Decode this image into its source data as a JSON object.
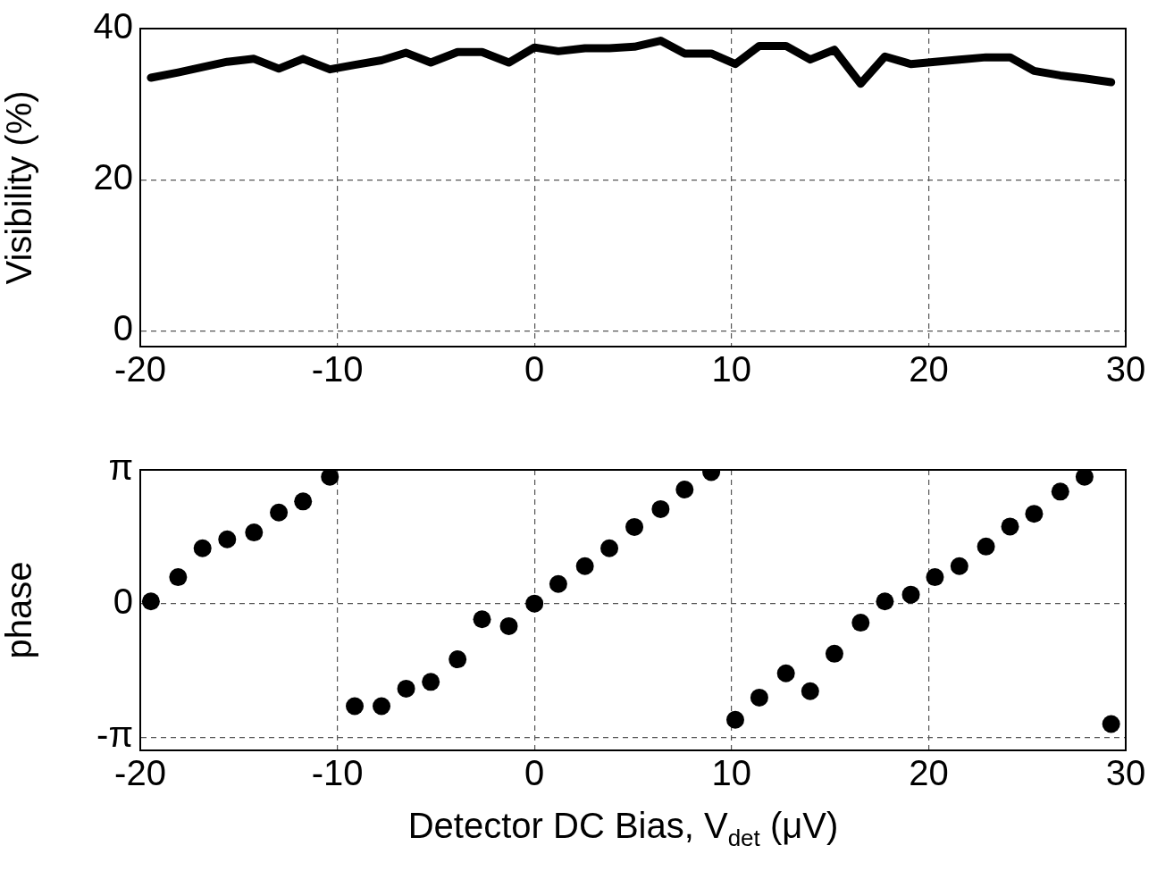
{
  "chart_data": [
    {
      "type": "line",
      "ylabel": "Visibility (%)",
      "xlim": [
        -20,
        30
      ],
      "xticks": [
        -20,
        -10,
        0,
        10,
        20,
        30
      ],
      "ylim": [
        -2.1,
        40
      ],
      "yticks": [
        0,
        20,
        40
      ],
      "grid": true,
      "line_style": "solid",
      "marker": "none",
      "x": [
        -19.46,
        -18.08,
        -16.84,
        -15.59,
        -14.23,
        -12.97,
        -11.74,
        -10.38,
        -9.12,
        -7.76,
        -6.51,
        -5.26,
        -3.9,
        -2.66,
        -1.3,
        0,
        1.21,
        2.56,
        3.8,
        5.07,
        6.4,
        7.62,
        8.97,
        10.19,
        11.41,
        12.76,
        13.99,
        15.22,
        16.55,
        17.78,
        19.1,
        20.32,
        21.56,
        22.91,
        24.13,
        25.35,
        26.68,
        27.91,
        29.26
      ],
      "series": [
        {
          "color": "#000000",
          "values": [
            33.5,
            34.2,
            34.9,
            35.6,
            36.0,
            34.7,
            36.0,
            34.6,
            35.2,
            35.8,
            36.8,
            35.5,
            36.9,
            36.9,
            35.5,
            37.5,
            37.0,
            37.4,
            37.4,
            37.6,
            38.4,
            36.7,
            36.7,
            35.3,
            37.7,
            37.7,
            35.9,
            37.2,
            32.7,
            36.3,
            35.3,
            35.6,
            35.9,
            36.2,
            36.2,
            34.4,
            33.8,
            33.4,
            32.9
          ]
        }
      ]
    },
    {
      "type": "scatter",
      "ylabel": "phase",
      "xlabel": "Detector DC Bias,  V$_{det}$ (μV)",
      "xlim": [
        -20,
        30
      ],
      "xticks": [
        -20,
        -10,
        0,
        10,
        20,
        30
      ],
      "ylim": [
        -3.45,
        3.1416
      ],
      "yticks": [
        {
          "value": -3.1416,
          "label": "-π"
        },
        0,
        {
          "value": 3.1416,
          "label": "π"
        }
      ],
      "grid": true,
      "marker": "circle",
      "x": [
        -19.46,
        -18.08,
        -16.84,
        -15.59,
        -14.23,
        -12.97,
        -11.74,
        -10.38,
        -9.12,
        -7.76,
        -6.51,
        -5.26,
        -3.9,
        -2.66,
        -1.3,
        0,
        1.21,
        2.56,
        3.8,
        5.07,
        6.4,
        7.62,
        8.97,
        10.19,
        11.41,
        12.76,
        13.99,
        15.22,
        16.55,
        17.78,
        19.1,
        20.32,
        21.56,
        22.91,
        24.13,
        25.35,
        26.68,
        27.91,
        29.26
      ],
      "series": [
        {
          "color": "#000000",
          "values": [
            0.05,
            0.62,
            1.3,
            1.51,
            1.67,
            2.14,
            2.4,
            2.98,
            -2.41,
            -2.41,
            -2.0,
            -1.84,
            -1.31,
            -0.37,
            -0.53,
            0,
            0.46,
            0.88,
            1.3,
            1.8,
            2.22,
            2.68,
            3.09,
            -2.73,
            -2.21,
            -1.64,
            -2.06,
            -1.18,
            -0.45,
            0.05,
            0.21,
            0.62,
            0.88,
            1.34,
            1.81,
            2.11,
            2.63,
            2.98,
            -2.83
          ]
        }
      ]
    }
  ]
}
